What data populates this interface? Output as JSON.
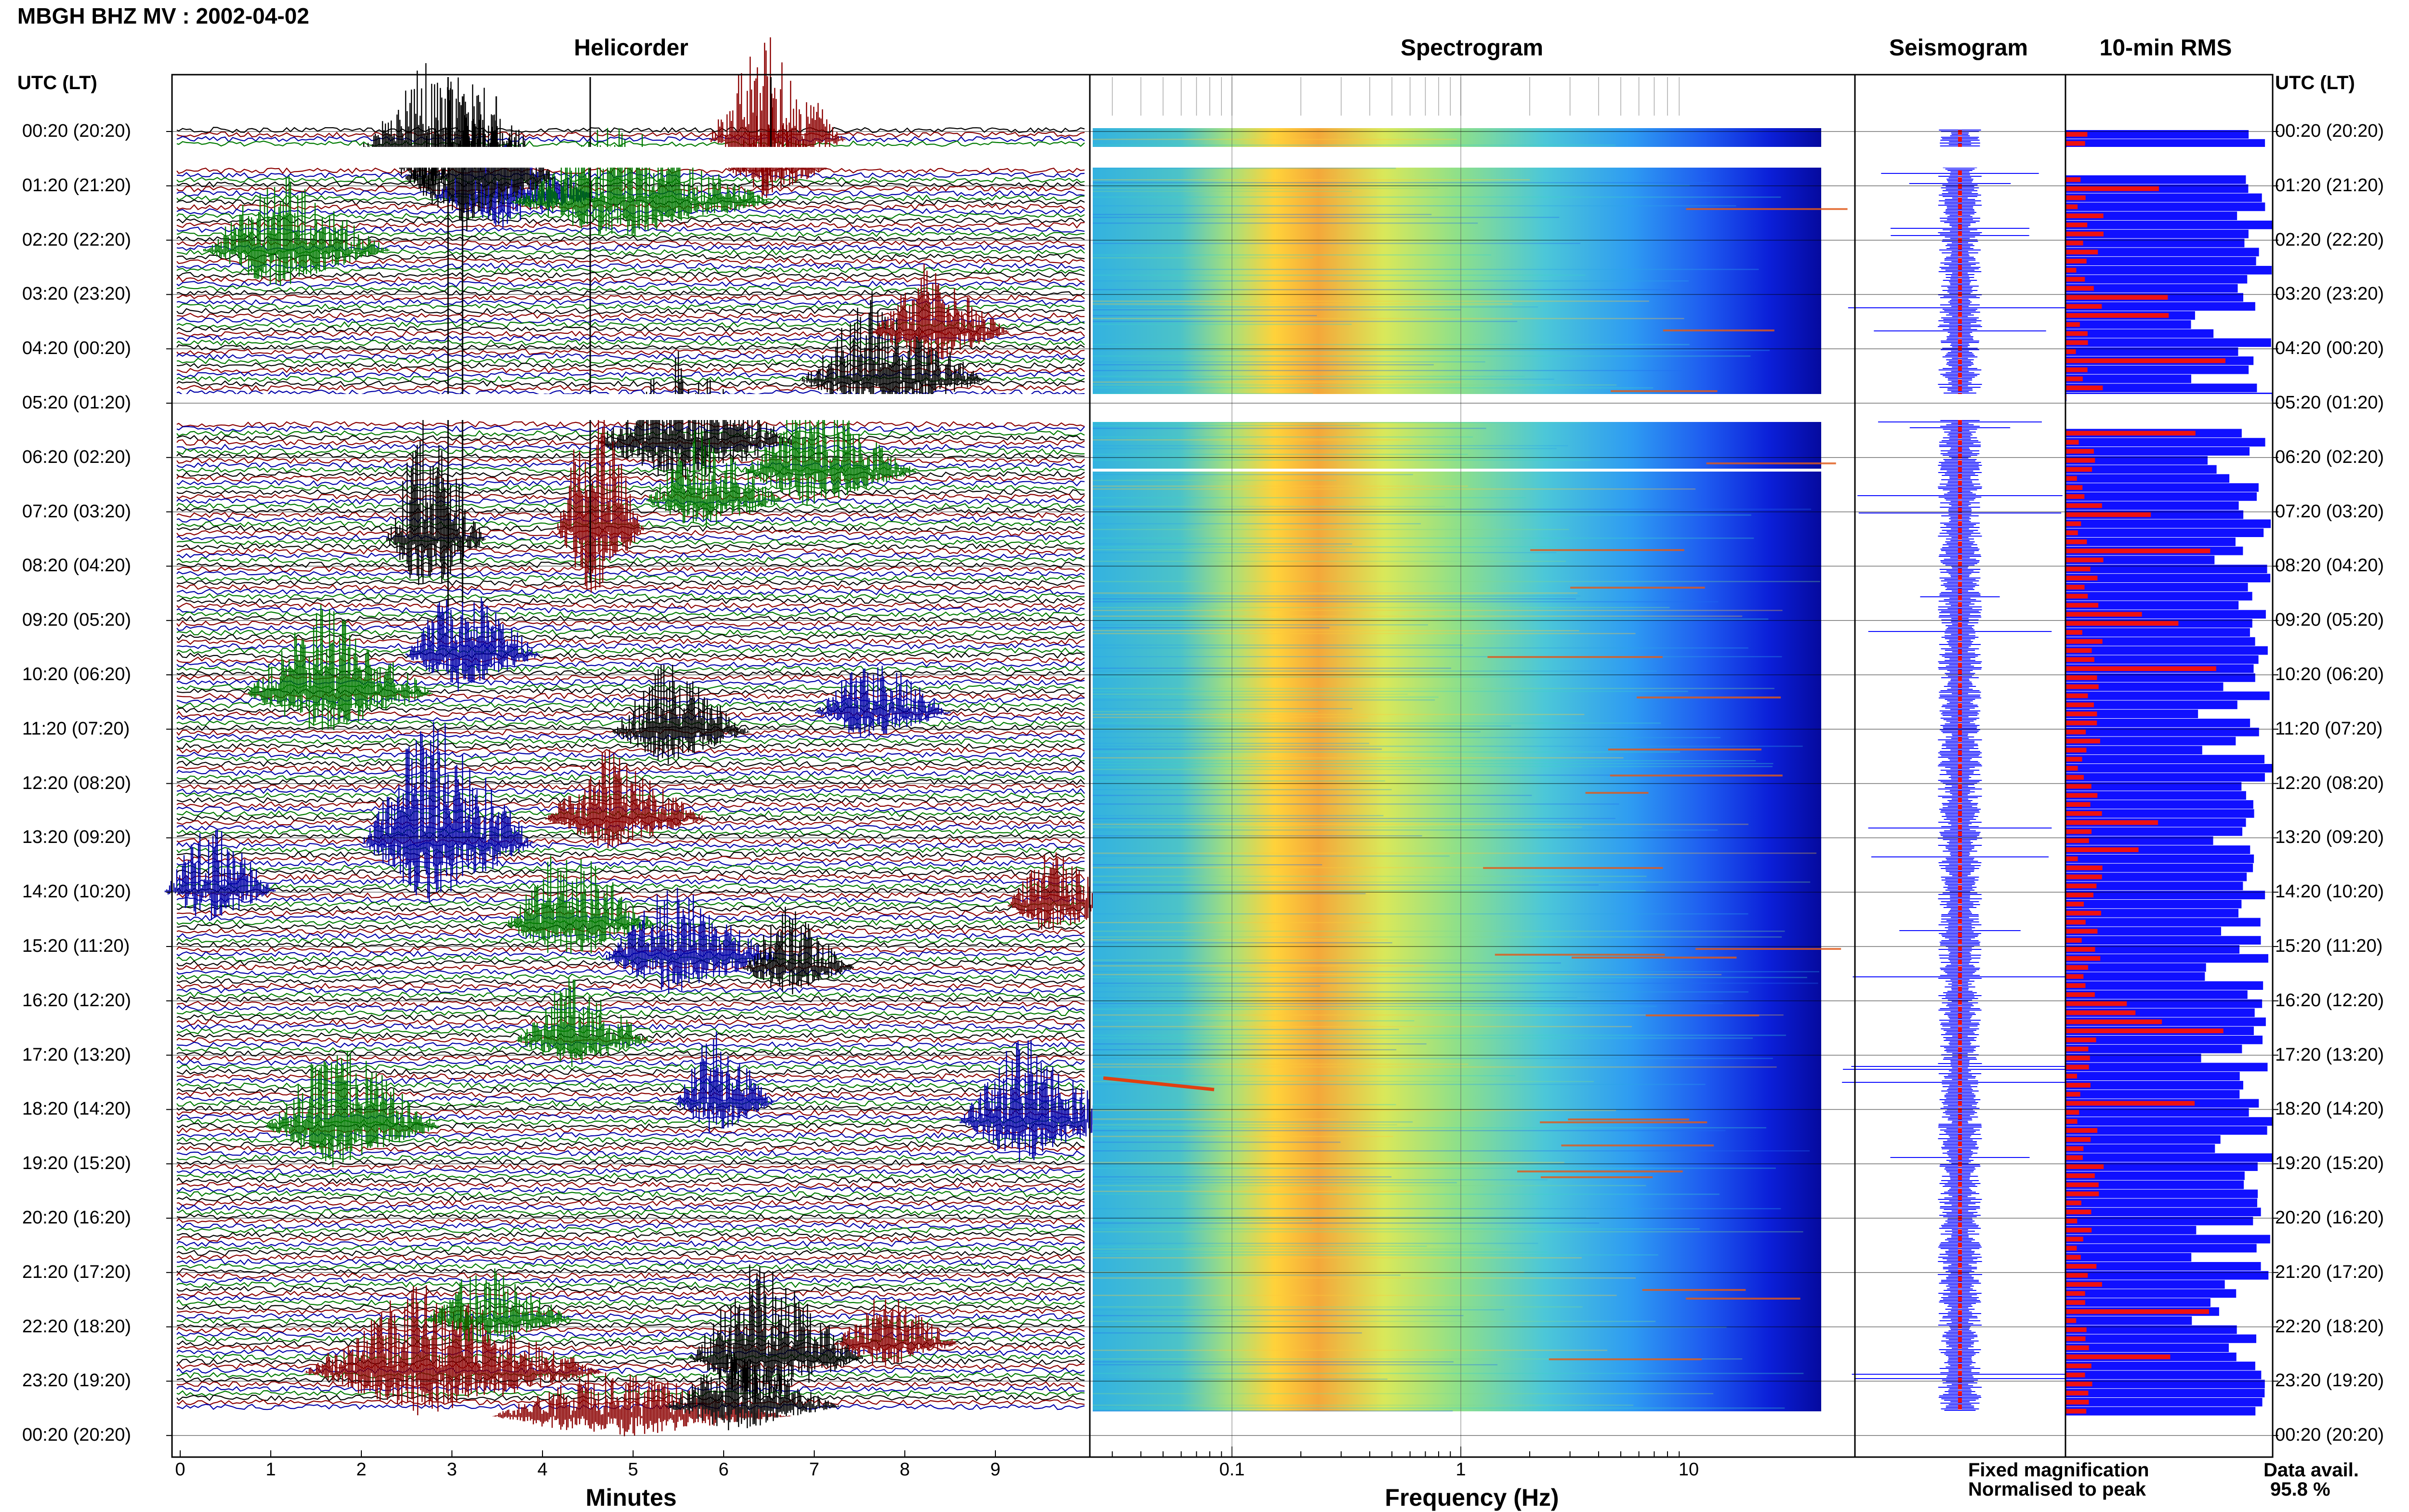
{
  "header": {
    "station_date": "MBGH BHZ MV : 2002-04-02"
  },
  "panels": {
    "helicorder": "Helicorder",
    "spectrogram": "Spectrogram",
    "seismogram": "Seismogram",
    "rms": "10-min RMS"
  },
  "time_axis": {
    "heading_left": "UTC (LT)",
    "heading_right": "UTC (LT)",
    "labels": [
      "00:20 (20:20)",
      "01:20 (21:20)",
      "02:20 (22:20)",
      "03:20 (23:20)",
      "04:20 (00:20)",
      "05:20 (01:20)",
      "06:20 (02:20)",
      "07:20 (03:20)",
      "08:20 (04:20)",
      "09:20 (05:20)",
      "10:20 (06:20)",
      "11:20 (07:20)",
      "12:20 (08:20)",
      "13:20 (09:20)",
      "14:20 (10:20)",
      "15:20 (11:20)",
      "16:20 (12:20)",
      "17:20 (13:20)",
      "18:20 (14:20)",
      "19:20 (15:20)",
      "20:20 (16:20)",
      "21:20 (17:20)",
      "22:20 (18:20)",
      "23:20 (19:20)",
      "00:20 (20:20)"
    ]
  },
  "helicorder_axis": {
    "xlabel": "Minutes",
    "ticks": [
      "0",
      "1",
      "2",
      "3",
      "4",
      "5",
      "6",
      "7",
      "8",
      "9"
    ],
    "trace_colors": [
      "#000000",
      "#8b0000",
      "#0000a8",
      "#007a00"
    ]
  },
  "spectrogram_axis": {
    "xlabel": "Frequency (Hz)",
    "ticks": [
      "0.1",
      "1",
      "10"
    ],
    "scale": "log"
  },
  "legend": {
    "fixed": "Fixed magnification",
    "fixed_color": "#1010ff",
    "normalised": "Normalised to peak",
    "normalised_color": "#ee1111"
  },
  "availability": {
    "label": "Data avail.",
    "value": "95.8 %"
  },
  "chart_data": [
    {
      "type": "line",
      "title": "Helicorder",
      "xlabel": "Minutes",
      "xlim": [
        0,
        10
      ],
      "time_range": [
        "00:20",
        "00:20"
      ],
      "gaps_utc": [
        "00:40-01:00",
        "05:20-05:30"
      ]
    },
    {
      "type": "heatmap",
      "title": "Spectrogram",
      "xlabel": "Frequency (Hz)",
      "x_scale": "log",
      "xlim": [
        0.02,
        50
      ],
      "peak_band_hz": [
        0.15,
        0.5
      ]
    },
    {
      "type": "line",
      "title": "Seismogram",
      "series": [
        {
          "name": "Fixed magnification",
          "color": "#1010ff"
        },
        {
          "name": "Normalised to peak",
          "color": "#ee1111"
        }
      ]
    },
    {
      "type": "bar",
      "title": "10-min RMS",
      "orientation": "horizontal",
      "series": [
        {
          "name": "Fixed magnification",
          "color": "#1010ff"
        },
        {
          "name": "Normalised to peak",
          "color": "#ee1111"
        }
      ]
    }
  ]
}
